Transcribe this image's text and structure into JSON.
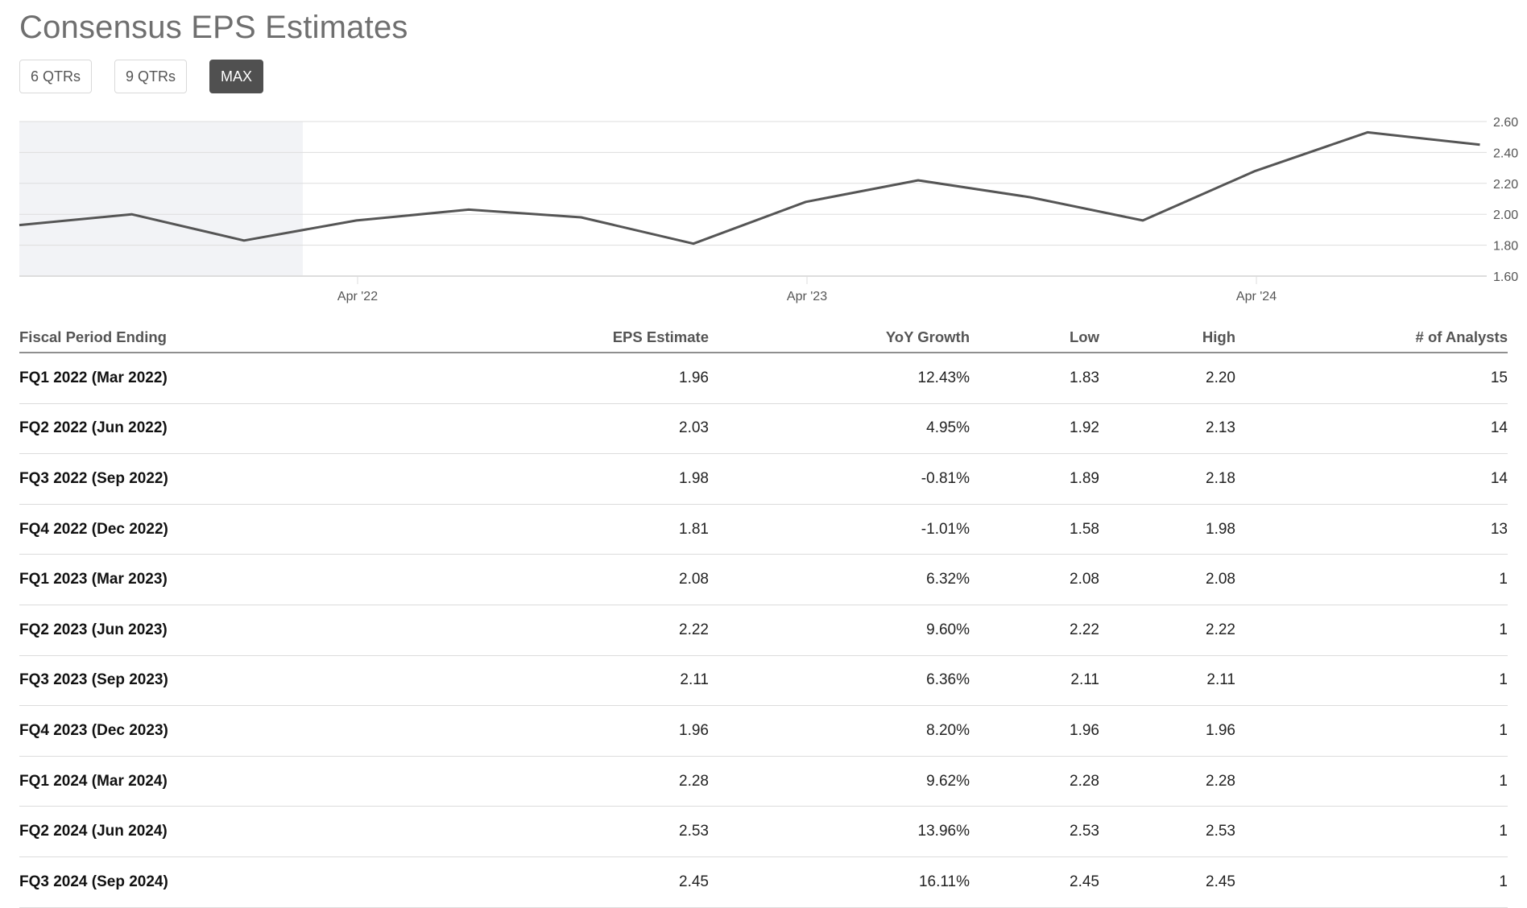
{
  "title": "Consensus EPS Estimates",
  "range_buttons": [
    {
      "label": "6 QTRs",
      "active": false
    },
    {
      "label": "9 QTRs",
      "active": false
    },
    {
      "label": "MAX",
      "active": true
    }
  ],
  "colors": {
    "line": "#555555",
    "grid": "#dddddd",
    "shade": "#f2f3f6",
    "active_button": "#505050"
  },
  "chart_data": {
    "type": "line",
    "series": [
      {
        "values": [
          1.93,
          2.0,
          1.83,
          1.96,
          2.03,
          1.98,
          1.81,
          2.08,
          2.22,
          2.11,
          1.96,
          2.28,
          2.53,
          2.45
        ]
      }
    ],
    "x_tick_labels": [
      "Apr '22",
      "Apr '23",
      "Apr '24"
    ],
    "y_tick_labels": [
      "2.60",
      "2.40",
      "2.20",
      "2.00",
      "1.80",
      "1.60"
    ],
    "ylim": [
      1.6,
      2.6
    ],
    "shaded_region": "first three quarters (historical)",
    "grid": true,
    "y_axis_side": "right"
  },
  "table": {
    "headers": [
      "Fiscal Period Ending",
      "EPS Estimate",
      "YoY Growth",
      "Low",
      "High",
      "# of Analysts"
    ],
    "rows": [
      [
        "FQ1 2022 (Mar 2022)",
        "1.96",
        "12.43%",
        "1.83",
        "2.20",
        "15"
      ],
      [
        "FQ2 2022 (Jun 2022)",
        "2.03",
        "4.95%",
        "1.92",
        "2.13",
        "14"
      ],
      [
        "FQ3 2022 (Sep 2022)",
        "1.98",
        "-0.81%",
        "1.89",
        "2.18",
        "14"
      ],
      [
        "FQ4 2022 (Dec 2022)",
        "1.81",
        "-1.01%",
        "1.58",
        "1.98",
        "13"
      ],
      [
        "FQ1 2023 (Mar 2023)",
        "2.08",
        "6.32%",
        "2.08",
        "2.08",
        "1"
      ],
      [
        "FQ2 2023 (Jun 2023)",
        "2.22",
        "9.60%",
        "2.22",
        "2.22",
        "1"
      ],
      [
        "FQ3 2023 (Sep 2023)",
        "2.11",
        "6.36%",
        "2.11",
        "2.11",
        "1"
      ],
      [
        "FQ4 2023 (Dec 2023)",
        "1.96",
        "8.20%",
        "1.96",
        "1.96",
        "1"
      ],
      [
        "FQ1 2024 (Mar 2024)",
        "2.28",
        "9.62%",
        "2.28",
        "2.28",
        "1"
      ],
      [
        "FQ2 2024 (Jun 2024)",
        "2.53",
        "13.96%",
        "2.53",
        "2.53",
        "1"
      ],
      [
        "FQ3 2024 (Sep 2024)",
        "2.45",
        "16.11%",
        "2.45",
        "2.45",
        "1"
      ]
    ]
  }
}
